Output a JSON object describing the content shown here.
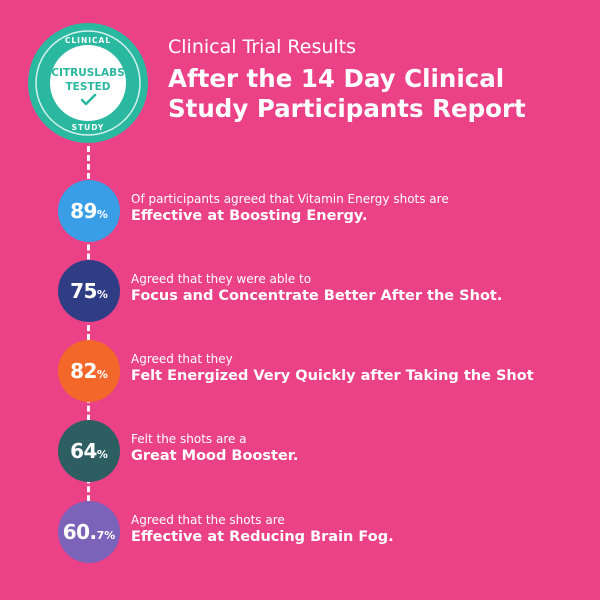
{
  "badge": {
    "top_text": "CLINICAL",
    "brand_line1": "CITRUSLABS",
    "brand_line2": "TESTED",
    "bottom_text": "STUDY",
    "ring_color": "#2bb8a0"
  },
  "header": {
    "subtitle": "Clinical Trial Results",
    "title_line1": "After the 14 Day Clinical",
    "title_line2": "Study Participants Report"
  },
  "stats": [
    {
      "value": "89",
      "unit": "%",
      "line1": "Of participants agreed that Vitamin Energy shots are",
      "line2": "Effective at Boosting Energy.",
      "color": "#3a9ee6"
    },
    {
      "value": "75",
      "unit": "%",
      "line1": "Agreed that they were able to",
      "line2": "Focus and Concentrate Better After the Shot.",
      "color": "#2f3d84"
    },
    {
      "value": "82",
      "unit": "%",
      "line1": "Agreed that they",
      "line2": "Felt Energized Very Quickly after Taking the Shot",
      "color": "#f4672a"
    },
    {
      "value": "64",
      "unit": "%",
      "line1": "Felt the shots are a",
      "line2": "Great Mood Booster.",
      "color": "#2d5e62"
    },
    {
      "value": "60.",
      "unit": "7%",
      "line1": "Agreed that the shots are",
      "line2": "Effective at Reducing Brain Fog.",
      "color": "#7a63b8"
    }
  ]
}
